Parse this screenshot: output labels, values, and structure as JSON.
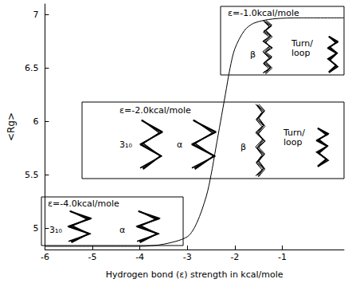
{
  "chart_data": {
    "type": "line",
    "x_label": "Hydrogen bond (ε) strength in kcal/mole",
    "y_label": "<Rg>",
    "x": [
      -6,
      -4,
      -3.5,
      -3,
      -2.8,
      -2.6,
      -2.5,
      -2.4,
      -2.3,
      -2.2,
      -2.1,
      -2.0,
      -1.8,
      -1.6,
      -1.2,
      -0.6,
      0.3
    ],
    "values": [
      4.83,
      4.83,
      4.85,
      4.92,
      5.05,
      5.3,
      5.5,
      5.75,
      6.0,
      6.25,
      6.5,
      6.68,
      6.85,
      6.92,
      6.96,
      6.97,
      6.97
    ],
    "color": "#000000",
    "xlim": [
      -6,
      0.3
    ],
    "xticks": [
      -6,
      -5,
      -4,
      -3,
      -2,
      -1
    ],
    "ylim": [
      4.8,
      7.1
    ],
    "yticks": [
      5,
      5.5,
      6,
      6.5,
      7
    ],
    "grid": false,
    "annotations": [
      {
        "title": "ε=-1.0kcal/mole",
        "structures": [
          "β",
          "Turn/ loop"
        ]
      },
      {
        "title": "ε=-2.0kcal/mole",
        "structures": [
          "3₁₀",
          "α",
          "β",
          "Turn/ loop"
        ]
      },
      {
        "title": "ε=-4.0kcal/mole",
        "structures": [
          "3₁₀",
          "α"
        ]
      }
    ]
  }
}
